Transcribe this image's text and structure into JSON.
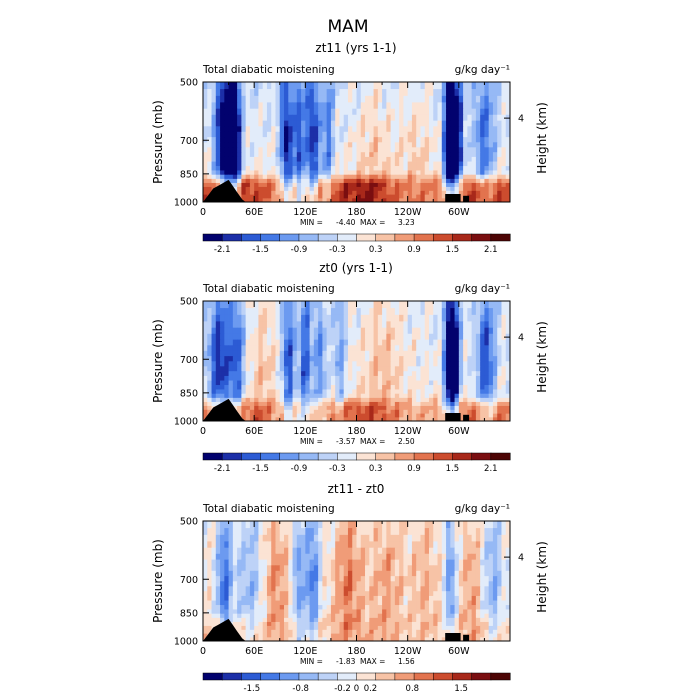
{
  "figure_title": "MAM",
  "colormap": {
    "levels": [
      -2.1,
      -1.8,
      -1.5,
      -1.2,
      -0.9,
      -0.6,
      -0.3,
      0,
      0.3,
      0.6,
      0.9,
      1.2,
      1.5,
      1.8,
      2.1
    ],
    "colors": [
      "#02026e",
      "#1c2fa8",
      "#2c5bd4",
      "#4479e6",
      "#6c9af0",
      "#96b9f5",
      "#bdd2f7",
      "#e2ecfa",
      "#fbe3d4",
      "#f7c3a6",
      "#f09c78",
      "#e2734e",
      "#cc4c2e",
      "#a8281a",
      "#7a0e10",
      "#4d0505"
    ]
  },
  "chart_data": [
    {
      "type": "heatmap",
      "title": "zt11 (yrs 1-1)",
      "left_label": "Total diabatic moistening",
      "units": "g/kg day⁻¹",
      "ylabel": "Pressure (mb)",
      "ylabel_right": "Height (km)",
      "yticks": [
        "500",
        "700",
        "850",
        "1000"
      ],
      "ytick_pressures": [
        500,
        700,
        850,
        1000
      ],
      "yticks_right": [
        "4"
      ],
      "xticks": [
        "0",
        "60E",
        "120E",
        "180",
        "120W",
        "60W"
      ],
      "xtick_lons": [
        0,
        60,
        120,
        180,
        240,
        300
      ],
      "xlim": [
        0,
        360
      ],
      "ylim": [
        1000,
        500
      ],
      "min_label": "MIN =",
      "min_value": "-4.40",
      "max_label": "MAX =",
      "max_value": "3.23",
      "colorbar_labels": [
        "-2.1",
        "-1.5",
        "-0.9",
        "-0.3",
        "0.3",
        "0.9",
        "1.5",
        "2.1"
      ],
      "colorbar_values": [
        -2.1,
        -1.5,
        -0.9,
        -0.3,
        0.3,
        0.9,
        1.5,
        2.1
      ],
      "colorbar_range": [
        -2.4,
        2.4
      ],
      "field": {
        "base_upper": -0.3,
        "base_lower": 0.2,
        "boundary_layer": {
          "top_pressure": 880,
          "amplitude": 1.5
        },
        "features": [
          {
            "lon": 26,
            "width": 8,
            "amplitude": -2.6
          },
          {
            "lon": 38,
            "width": 5,
            "amplitude": -2.0
          },
          {
            "lon": 98,
            "width": 5,
            "amplitude": -2.0
          },
          {
            "lon": 112,
            "width": 4,
            "amplitude": -1.6
          },
          {
            "lon": 128,
            "width": 6,
            "amplitude": -1.8
          },
          {
            "lon": 146,
            "width": 5,
            "amplitude": -1.1
          },
          {
            "lon": 290,
            "width": 5,
            "amplitude": -3.5
          },
          {
            "lon": 300,
            "width": 4,
            "amplitude": -1.8
          },
          {
            "lon": 330,
            "width": 9,
            "amplitude": -1.2
          },
          {
            "lon": 200,
            "width": 14,
            "amplitude": 0.4
          },
          {
            "lon": 250,
            "width": 14,
            "amplitude": 0.35
          }
        ]
      }
    },
    {
      "type": "heatmap",
      "title": "zt0 (yrs 1-1)",
      "left_label": "Total diabatic moistening",
      "units": "g/kg day⁻¹",
      "ylabel": "Pressure (mb)",
      "ylabel_right": "Height (km)",
      "yticks": [
        "500",
        "700",
        "850",
        "1000"
      ],
      "ytick_pressures": [
        500,
        700,
        850,
        1000
      ],
      "yticks_right": [
        "4"
      ],
      "xticks": [
        "0",
        "60E",
        "120E",
        "180",
        "120W",
        "60W"
      ],
      "xtick_lons": [
        0,
        60,
        120,
        180,
        240,
        300
      ],
      "xlim": [
        0,
        360
      ],
      "ylim": [
        1000,
        500
      ],
      "min_label": "MIN =",
      "min_value": "-3.57",
      "max_label": "MAX =",
      "max_value": "2.50",
      "colorbar_labels": [
        "-2.1",
        "-1.5",
        "-0.9",
        "-0.3",
        "0.3",
        "0.9",
        "1.5",
        "2.1"
      ],
      "colorbar_values": [
        -2.1,
        -1.5,
        -0.9,
        -0.3,
        0.3,
        0.9,
        1.5,
        2.1
      ],
      "colorbar_range": [
        -2.4,
        2.4
      ],
      "field": {
        "base_upper": -0.15,
        "base_lower": 0.15,
        "boundary_layer": {
          "top_pressure": 900,
          "amplitude": 1.1
        },
        "features": [
          {
            "lon": 20,
            "width": 10,
            "amplitude": -1.8
          },
          {
            "lon": 40,
            "width": 6,
            "amplitude": -1.3
          },
          {
            "lon": 100,
            "width": 5,
            "amplitude": -1.6
          },
          {
            "lon": 120,
            "width": 6,
            "amplitude": -1.5
          },
          {
            "lon": 138,
            "width": 5,
            "amplitude": -1.0
          },
          {
            "lon": 160,
            "width": 5,
            "amplitude": -0.9
          },
          {
            "lon": 292,
            "width": 6,
            "amplitude": -3.2
          },
          {
            "lon": 332,
            "width": 8,
            "amplitude": -1.6
          },
          {
            "lon": 210,
            "width": 16,
            "amplitude": 0.45
          },
          {
            "lon": 70,
            "width": 10,
            "amplitude": 0.4
          }
        ]
      }
    },
    {
      "type": "heatmap",
      "title": "zt11 - zt0",
      "left_label": "Total diabatic moistening",
      "units": "g/kg day⁻¹",
      "ylabel": "Pressure (mb)",
      "ylabel_right": "Height (km)",
      "yticks": [
        "500",
        "700",
        "850",
        "1000"
      ],
      "ytick_pressures": [
        500,
        700,
        850,
        1000
      ],
      "yticks_right": [
        "4"
      ],
      "xticks": [
        "0",
        "60E",
        "120E",
        "180",
        "120W",
        "60W"
      ],
      "xtick_lons": [
        0,
        60,
        120,
        180,
        240,
        300
      ],
      "xlim": [
        0,
        360
      ],
      "ylim": [
        1000,
        500
      ],
      "min_label": "MIN =",
      "min_value": "-1.83",
      "max_label": "MAX =",
      "max_value": "1.56",
      "colorbar_labels": [
        "-1.5",
        "-0.8",
        "-0.2",
        "0",
        "0.2",
        "0.8",
        "1.5"
      ],
      "colorbar_values": [
        -1.5,
        -0.8,
        -0.2,
        0,
        0.2,
        0.8,
        1.5
      ],
      "colorbar_range": [
        -2.2,
        2.2
      ],
      "field": {
        "base_upper": 0.0,
        "base_lower": 0.1,
        "boundary_layer": {
          "top_pressure": 880,
          "amplitude": 0.3
        },
        "features": [
          {
            "lon": 25,
            "width": 6,
            "amplitude": -1.4
          },
          {
            "lon": 55,
            "width": 12,
            "amplitude": -0.7
          },
          {
            "lon": 85,
            "width": 10,
            "amplitude": 0.8
          },
          {
            "lon": 112,
            "width": 4,
            "amplitude": -1.1
          },
          {
            "lon": 128,
            "width": 6,
            "amplitude": -1.3
          },
          {
            "lon": 170,
            "width": 12,
            "amplitude": 0.9
          },
          {
            "lon": 215,
            "width": 14,
            "amplitude": 0.6
          },
          {
            "lon": 260,
            "width": 12,
            "amplitude": 0.5
          },
          {
            "lon": 290,
            "width": 4,
            "amplitude": -1.2
          },
          {
            "lon": 315,
            "width": 8,
            "amplitude": 0.6
          },
          {
            "lon": 340,
            "width": 8,
            "amplitude": -0.8
          }
        ]
      }
    }
  ]
}
